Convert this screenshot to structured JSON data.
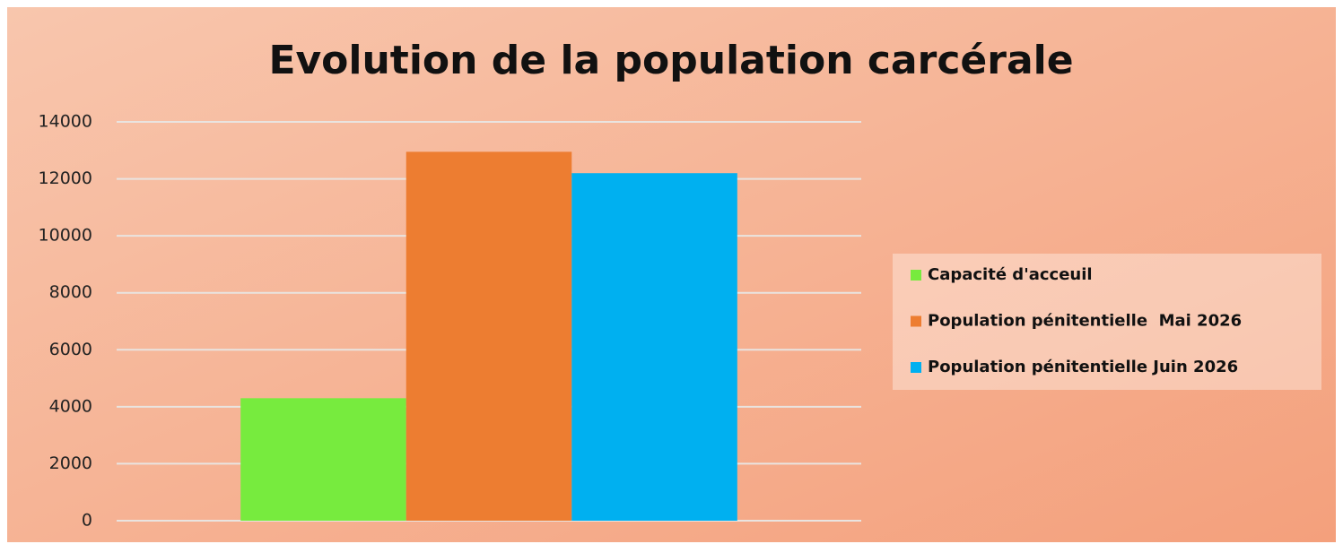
{
  "chart_data": {
    "type": "bar",
    "title": "Evolution de la population carcérale",
    "categories": [
      null
    ],
    "series": [
      {
        "name": "Capacité d'acceuil",
        "color": "#77eb3e",
        "values": [
          4300
        ]
      },
      {
        "name": "Population pénitentielle  Mai 2026",
        "color": "#ed7d31",
        "values": [
          12950
        ]
      },
      {
        "name": "Population pénitentielle Juin 2026",
        "color": "#00b0f0",
        "values": [
          12200
        ]
      }
    ],
    "ylim": [
      0,
      14000
    ],
    "yticks": [
      0,
      2000,
      4000,
      6000,
      8000,
      10000,
      12000,
      14000
    ],
    "grid": true,
    "legend": "right"
  }
}
